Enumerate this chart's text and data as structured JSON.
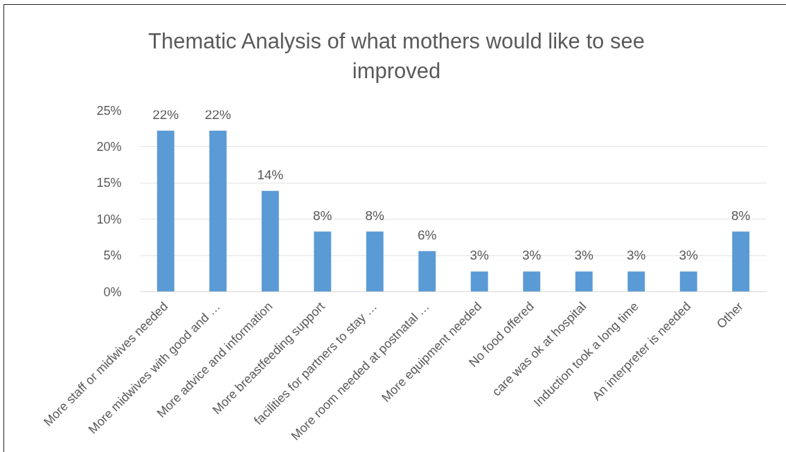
{
  "chart_data": {
    "type": "bar",
    "title": "Thematic Analysis of what mothers would like to see improved",
    "categories": [
      "More staff or midwives needed",
      "More midwives with good and …",
      "More advice and information",
      "More breastfeeding support",
      "facilities for partners to stay …",
      "More room needed at postnatal …",
      "More equipment needed",
      "No food offered",
      "care was ok at hospital",
      "Induction took a long time",
      "An interpreter is needed",
      "Other"
    ],
    "values": [
      22.2,
      22.2,
      13.9,
      8.3,
      8.3,
      5.6,
      2.8,
      2.8,
      2.8,
      2.8,
      2.8,
      8.3
    ],
    "value_labels": [
      "22%",
      "22%",
      "14%",
      "8%",
      "8%",
      "6%",
      "3%",
      "3%",
      "3%",
      "3%",
      "3%",
      "8%"
    ],
    "color": "#5b9bd5",
    "ylim": [
      0,
      25
    ],
    "yticks": [
      {
        "value": 0,
        "label": "0%"
      },
      {
        "value": 5,
        "label": "5%"
      },
      {
        "value": 10,
        "label": "10%"
      },
      {
        "value": 15,
        "label": "15%"
      },
      {
        "value": 20,
        "label": "20%"
      },
      {
        "value": 25,
        "label": "25%"
      }
    ],
    "grid": "y"
  }
}
